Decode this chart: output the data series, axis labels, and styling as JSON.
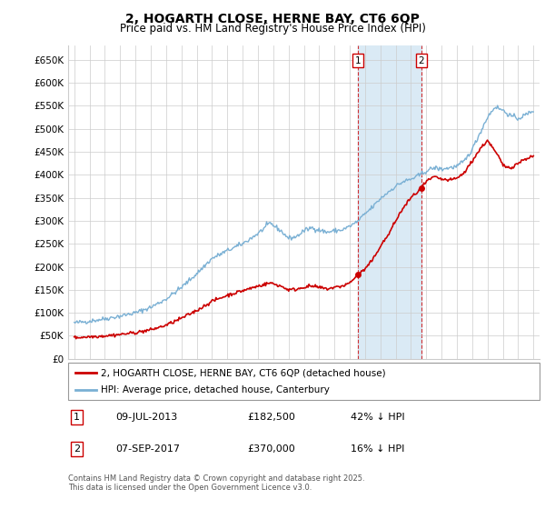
{
  "title": "2, HOGARTH CLOSE, HERNE BAY, CT6 6QP",
  "subtitle": "Price paid vs. HM Land Registry's House Price Index (HPI)",
  "ylim": [
    0,
    680000
  ],
  "yticks": [
    0,
    50000,
    100000,
    150000,
    200000,
    250000,
    300000,
    350000,
    400000,
    450000,
    500000,
    550000,
    600000,
    650000
  ],
  "ytick_labels": [
    "£0",
    "£50K",
    "£100K",
    "£150K",
    "£200K",
    "£250K",
    "£300K",
    "£350K",
    "£400K",
    "£450K",
    "£500K",
    "£550K",
    "£600K",
    "£650K"
  ],
  "sale1_date": 2013.52,
  "sale1_price": 182500,
  "sale1_text": "09-JUL-2013",
  "sale1_price_text": "£182,500",
  "sale1_pct": "42% ↓ HPI",
  "sale2_date": 2017.68,
  "sale2_price": 370000,
  "sale2_text": "07-SEP-2017",
  "sale2_price_text": "£370,000",
  "sale2_pct": "16% ↓ HPI",
  "legend_line1": "2, HOGARTH CLOSE, HERNE BAY, CT6 6QP (detached house)",
  "legend_line2": "HPI: Average price, detached house, Canterbury",
  "footer": "Contains HM Land Registry data © Crown copyright and database right 2025.\nThis data is licensed under the Open Government Licence v3.0.",
  "line_color_red": "#cc0000",
  "line_color_blue": "#7ab0d4",
  "shade_color": "#daeaf5",
  "grid_color": "#cccccc",
  "background_color": "#ffffff",
  "label_box_color": "#cc0000"
}
